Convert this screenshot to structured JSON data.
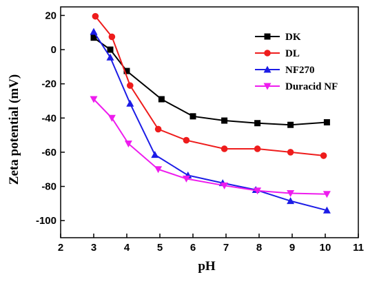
{
  "chart_data": {
    "type": "line",
    "xlabel": "pH",
    "ylabel": "Zeta potential (mV)",
    "xlim": [
      2,
      11
    ],
    "ylim": [
      -110,
      25
    ],
    "x_ticks": [
      2,
      3,
      4,
      5,
      6,
      7,
      8,
      9,
      10,
      11
    ],
    "y_ticks": [
      20,
      0,
      -20,
      -40,
      -60,
      -80,
      -100
    ],
    "legend_position": "top-right",
    "series": [
      {
        "name": "DK",
        "color": "#000000",
        "marker": "square",
        "x": [
          3.0,
          3.5,
          4.0,
          5.05,
          6.0,
          6.95,
          7.95,
          8.95,
          10.05
        ],
        "y": [
          7,
          0,
          -12.5,
          -29,
          -39,
          -41.5,
          -43,
          -44,
          -42.5
        ]
      },
      {
        "name": "DL",
        "color": "#ee1c1c",
        "marker": "circle",
        "x": [
          3.05,
          3.55,
          4.1,
          4.95,
          5.8,
          6.95,
          7.95,
          8.95,
          9.95
        ],
        "y": [
          19.5,
          7.5,
          -21,
          -46.5,
          -53,
          -58,
          -58,
          -60,
          -62
        ]
      },
      {
        "name": "NF270",
        "color": "#1c1ce6",
        "marker": "triangle-up",
        "x": [
          3.0,
          3.5,
          4.1,
          4.85,
          5.85,
          6.9,
          7.9,
          8.95,
          10.05
        ],
        "y": [
          10.5,
          -4.5,
          -31.5,
          -61.5,
          -73.5,
          -78,
          -82,
          -88.5,
          -94
        ]
      },
      {
        "name": "Duracid NF",
        "color": "#ee1cee",
        "marker": "triangle-down",
        "x": [
          3.0,
          3.55,
          4.05,
          4.95,
          5.8,
          6.95,
          7.95,
          8.95,
          10.05
        ],
        "y": [
          -29,
          -40,
          -55,
          -70,
          -75.5,
          -79.5,
          -82.5,
          -84,
          -84.5
        ]
      }
    ]
  }
}
